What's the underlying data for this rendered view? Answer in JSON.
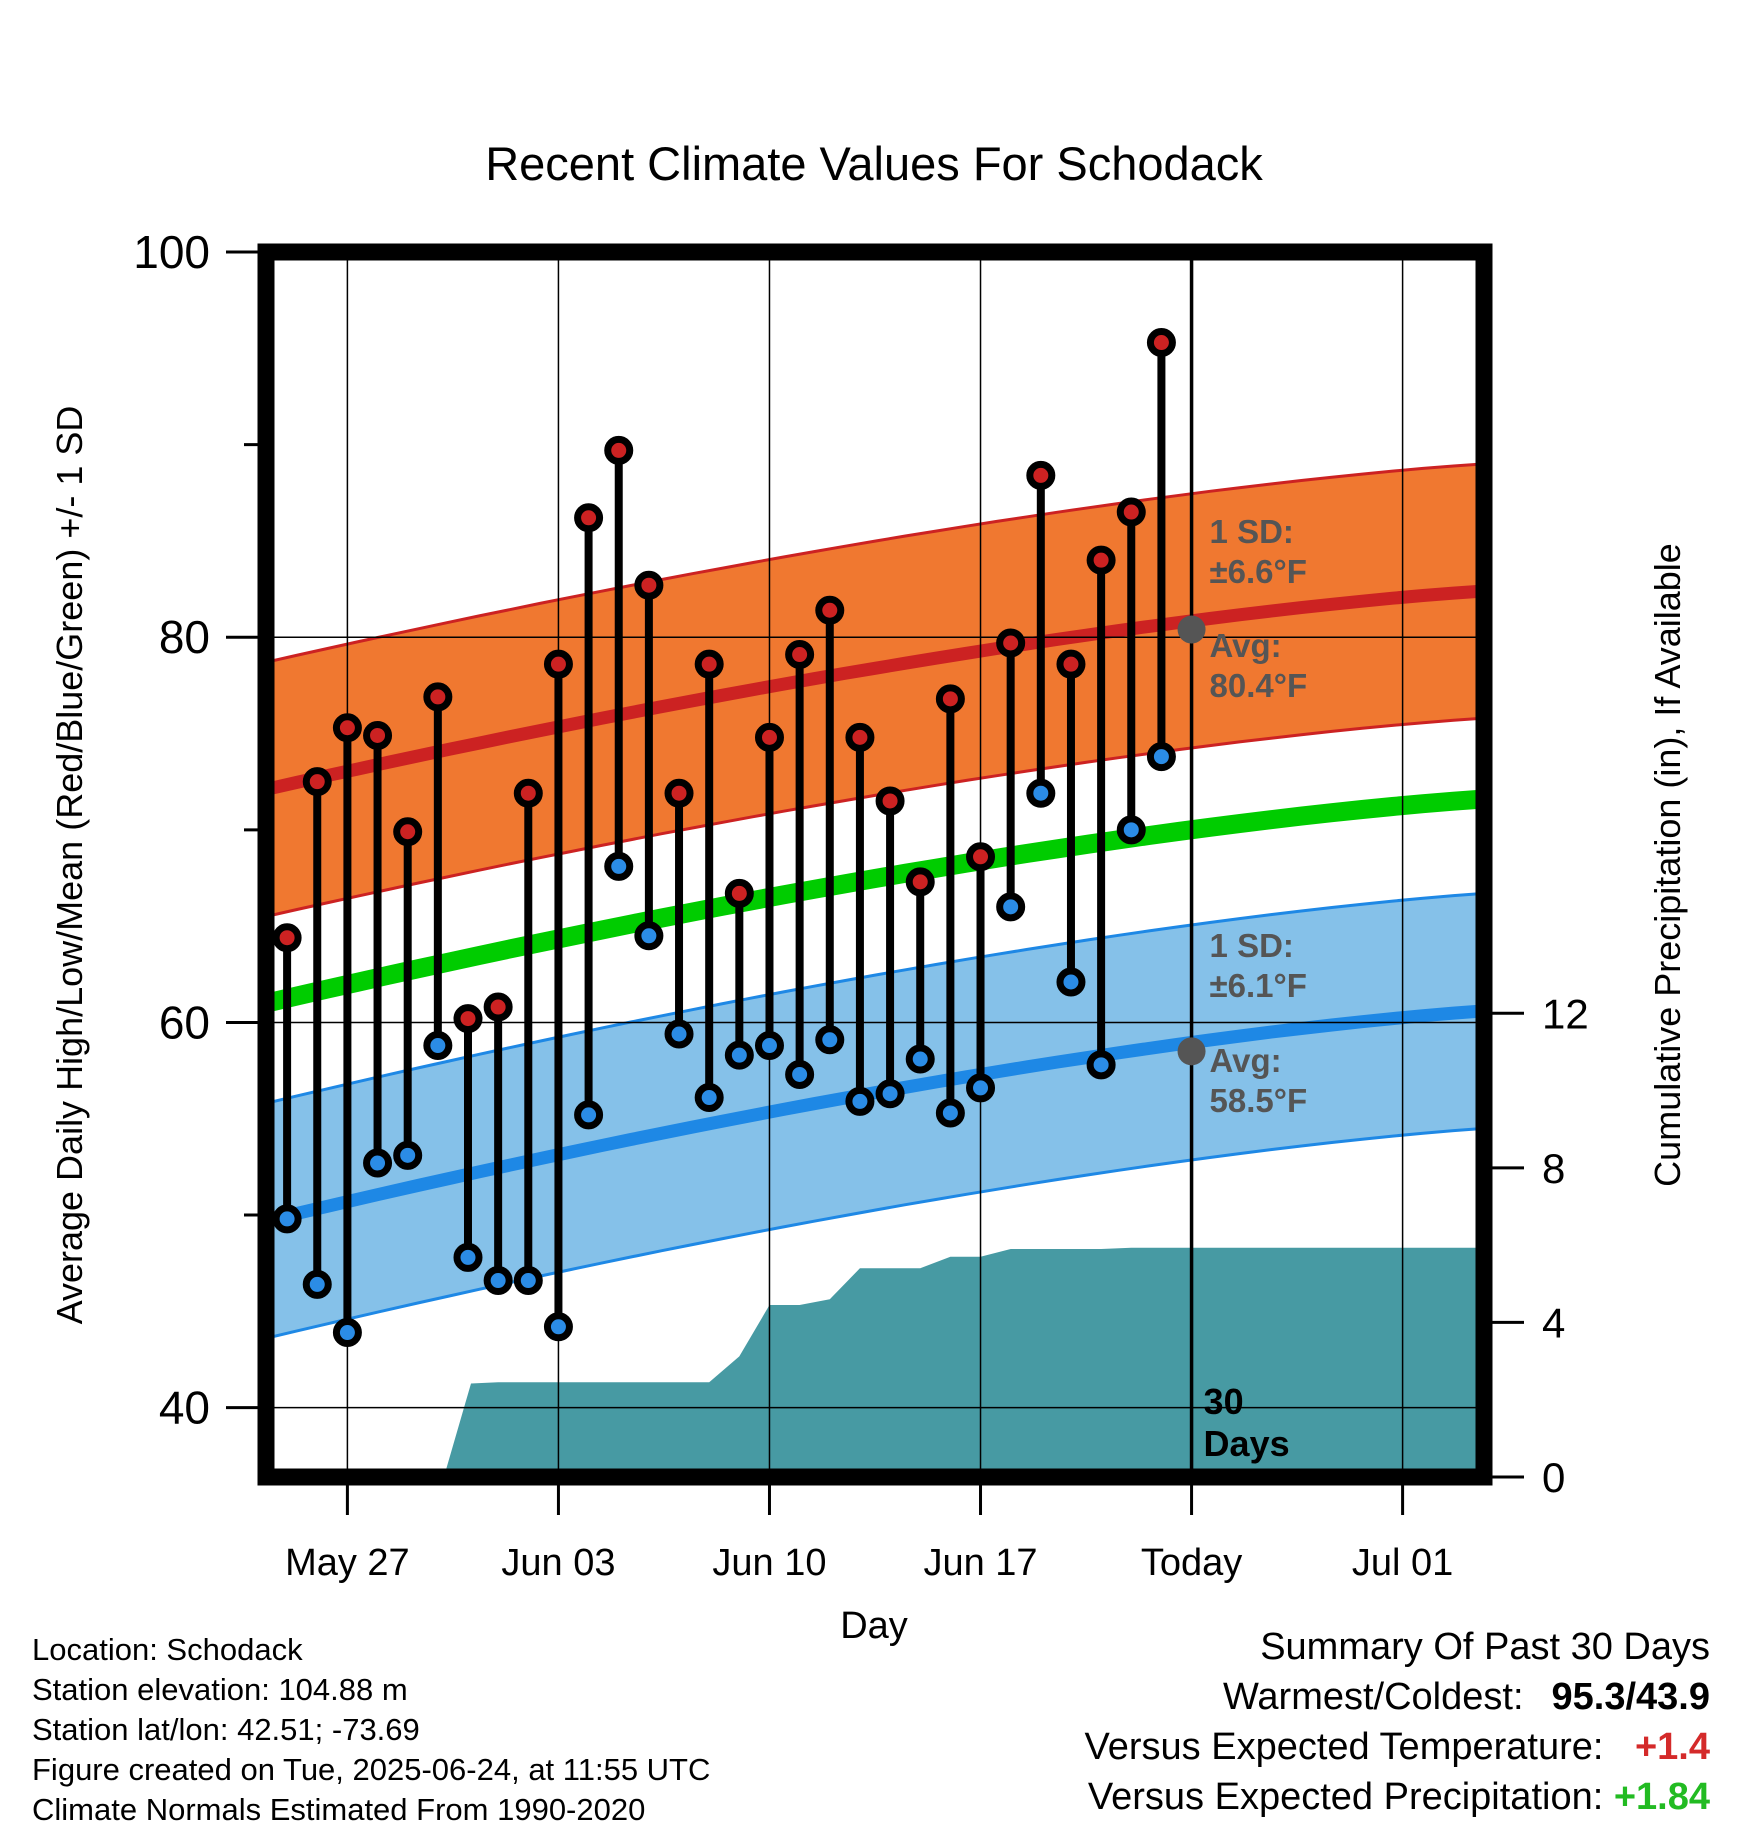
{
  "chart_data": {
    "type": "line",
    "title": "Recent Climate Values For Schodack",
    "xlabel": "Day",
    "ylabel": "Average Daily High/Low/Mean (Red/Blue/Green) +/- 1 SD",
    "y2label": "Cumulative Precipitation (in), If Available",
    "x_ticks": [
      "May 27",
      "Jun 03",
      "Jun 10",
      "Jun 17",
      "Today",
      "Jul 01"
    ],
    "x_tick_days": [
      0,
      7,
      14,
      21,
      28,
      35
    ],
    "xlim": [
      -2.7,
      37.7
    ],
    "ylim": [
      36.4,
      100
    ],
    "y_ticks": [
      40,
      60,
      80,
      100
    ],
    "y_minor_ticks": [
      50,
      70,
      90
    ],
    "y2lim": [
      0,
      31.7
    ],
    "y2_ticks": [
      0,
      4,
      8,
      12
    ],
    "grid": true,
    "today_day": 28,
    "today_marker_label": "30\nDays",
    "days": [
      -2,
      -1,
      0,
      1,
      2,
      3,
      4,
      5,
      6,
      7,
      8,
      9,
      10,
      11,
      12,
      13,
      14,
      15,
      16,
      17,
      18,
      19,
      20,
      21,
      22,
      23,
      24,
      25,
      26,
      27
    ],
    "series": [
      {
        "name": "High",
        "color": "#cc2222",
        "values": [
          64.4,
          72.5,
          75.3,
          74.9,
          69.9,
          76.9,
          60.2,
          60.8,
          71.9,
          78.6,
          86.2,
          89.7,
          82.7,
          71.9,
          78.6,
          66.7,
          74.8,
          79.1,
          81.4,
          74.8,
          71.5,
          67.3,
          76.8,
          68.6,
          79.7,
          88.4,
          78.6,
          84.0,
          86.5,
          95.3
        ]
      },
      {
        "name": "Low",
        "color": "#2b8ce6",
        "values": [
          49.8,
          46.4,
          43.9,
          52.7,
          53.1,
          58.8,
          47.8,
          46.6,
          46.6,
          44.2,
          55.2,
          68.1,
          64.5,
          59.4,
          56.1,
          58.3,
          58.8,
          57.3,
          59.1,
          55.9,
          56.3,
          58.1,
          55.3,
          56.6,
          66.0,
          71.9,
          62.1,
          57.8,
          70.0,
          73.8
        ]
      }
    ],
    "normals": {
      "day_range": [
        -2.7,
        37.7
      ],
      "high": [
        72.1,
        82.4
      ],
      "high_sd": 6.6,
      "low": [
        49.7,
        60.6
      ],
      "low_sd": 6.1,
      "mean": [
        61.0,
        71.6
      ]
    },
    "band_colors": {
      "high": "#f07830",
      "low": "#85c1e9",
      "mean": "#00cc00",
      "precip": "#479aa3"
    },
    "precip_cumulative": {
      "days": [
        3.2,
        4.1,
        5.0,
        6.0,
        8.0,
        9.0,
        10.0,
        11.0,
        12.0,
        13.0,
        14.0,
        15.0,
        16.0,
        17.0,
        18.0,
        19.0,
        20.0,
        21.0,
        22.0,
        23.0,
        24.0,
        25.0,
        26.0,
        27.0,
        28.0,
        37.7
      ],
      "values": [
        0,
        2.42,
        2.45,
        2.45,
        2.45,
        2.45,
        2.45,
        2.45,
        2.45,
        3.12,
        4.45,
        4.45,
        4.6,
        5.4,
        5.4,
        5.4,
        5.7,
        5.7,
        5.9,
        5.9,
        5.9,
        5.9,
        5.93,
        5.93,
        5.93,
        5.93
      ]
    },
    "annotations": {
      "high_sd_label": "1 SD:",
      "high_sd_value": "±6.6°F",
      "high_avg_label": "Avg:",
      "high_avg_value": "80.4°F",
      "high_avg": 80.4,
      "low_sd_label": "1 SD:",
      "low_sd_value": "±6.1°F",
      "low_avg_label": "Avg:",
      "low_avg_value": "58.5°F",
      "low_avg": 58.5
    }
  },
  "footer": {
    "location": "Location: Schodack",
    "elevation": "Station elevation: 104.88 m",
    "latlon": "Station lat/lon: 42.51; -73.69",
    "created": "Figure created on Tue, 2025-06-24, at 11:55 UTC",
    "normals": "Climate Normals Estimated From 1990-2020"
  },
  "summary": {
    "title": "Summary Of Past 30 Days",
    "warm_cold_label": "Warmest/Coldest:",
    "warm_cold_value": "95.3/43.9",
    "temp_label": "Versus Expected Temperature:",
    "temp_value": "+1.4",
    "temp_color": "#d42a2a",
    "precip_label": "Versus Expected Precipitation:",
    "precip_value": "+1.84",
    "precip_color": "#22bb22"
  }
}
